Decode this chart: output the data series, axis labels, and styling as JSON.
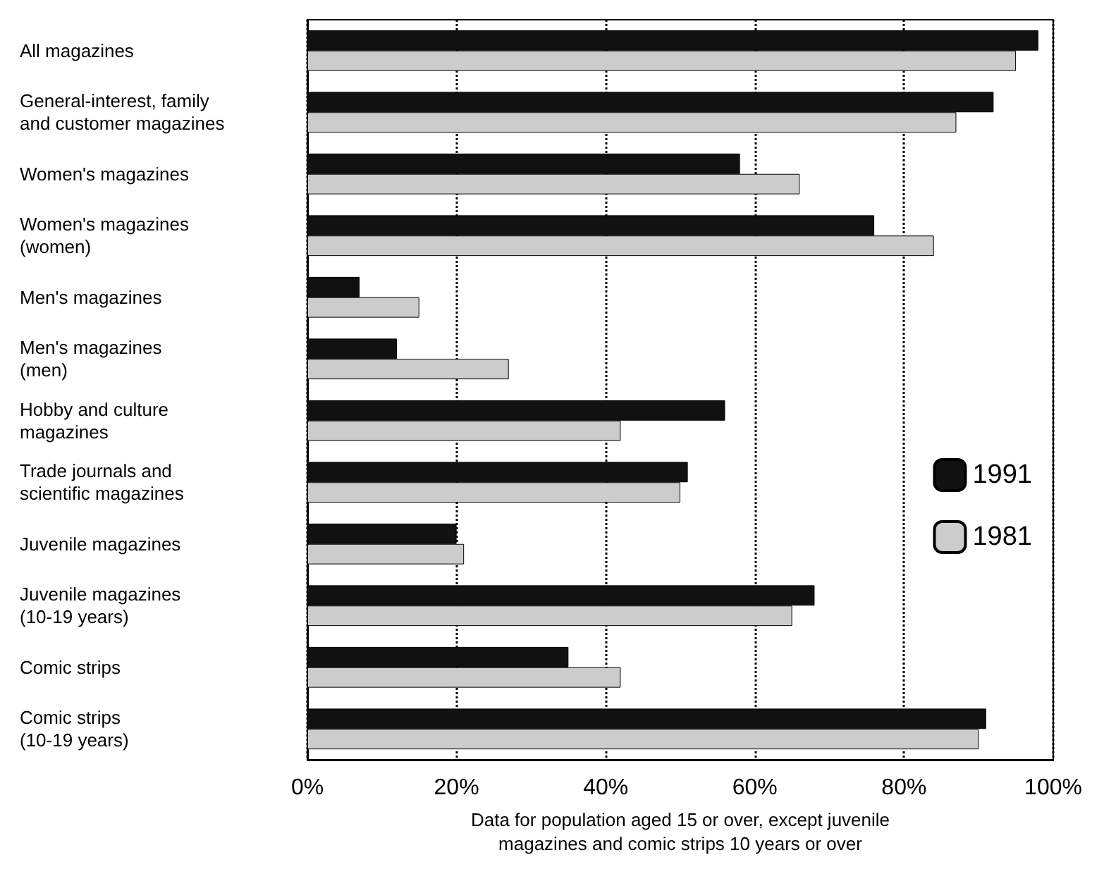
{
  "chart_data": {
    "type": "bar",
    "orientation": "horizontal",
    "categories": [
      "All magazines",
      "General-interest, family\nand customer magazines",
      "Women's magazines",
      "Women's magazines\n(women)",
      "Men's magazines",
      "Men's magazines\n(men)",
      "Hobby and culture\nmagazines",
      "Trade journals and\nscientific magazines",
      "Juvenile magazines",
      "Juvenile magazines\n(10-19 years)",
      "Comic strips",
      "Comic strips\n(10-19 years)"
    ],
    "series": [
      {
        "name": "1991",
        "color": "#111111",
        "values": [
          98,
          92,
          58,
          76,
          7,
          12,
          56,
          51,
          20,
          68,
          35,
          91
        ]
      },
      {
        "name": "1981",
        "color": "#cccccc",
        "values": [
          95,
          87,
          66,
          84,
          15,
          27,
          42,
          50,
          21,
          65,
          42,
          90
        ]
      }
    ],
    "xlim": [
      0,
      100
    ],
    "xticks": [
      {
        "value": 0,
        "label": "0%"
      },
      {
        "value": 20,
        "label": "20%"
      },
      {
        "value": 40,
        "label": "40%"
      },
      {
        "value": 60,
        "label": "60%"
      },
      {
        "value": 80,
        "label": "80%"
      },
      {
        "value": 100,
        "label": "100%"
      }
    ],
    "xlabel": "Data for population aged 15 or over, except juvenile\nmagazines and comic strips 10 years or over",
    "grid": "x",
    "legend": "right"
  }
}
